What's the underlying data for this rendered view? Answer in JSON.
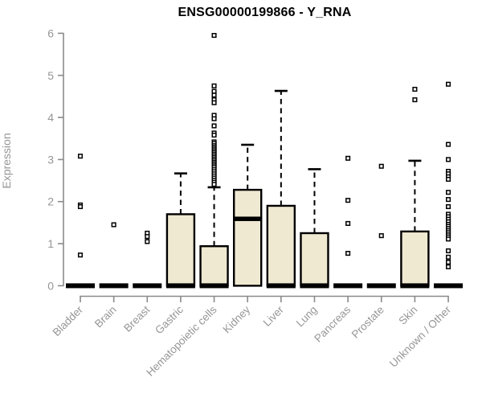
{
  "chart_data": {
    "type": "boxplot",
    "title": "ENSG00000199866 - Y_RNA",
    "ylabel": "Expression",
    "ylim": [
      0,
      6
    ],
    "yticks": [
      0,
      1,
      2,
      3,
      4,
      5,
      6
    ],
    "grid": false,
    "colors": {
      "box_fill": "#f0e9d2",
      "box_stroke": "#000000",
      "median": "#000000",
      "axis": "#8a8a8a",
      "tick_label": "#969696",
      "title": "#000000"
    },
    "categories": [
      {
        "label": "Bladder",
        "q1": 0,
        "median": 0,
        "q3": 0,
        "whisker_low": 0,
        "whisker_high": 0,
        "outliers": [
          3.08,
          1.92,
          1.88,
          0.73
        ]
      },
      {
        "label": "Brain",
        "q1": 0,
        "median": 0,
        "q3": 0,
        "whisker_low": 0,
        "whisker_high": 0,
        "outliers": [
          1.45
        ]
      },
      {
        "label": "Breast",
        "q1": 0,
        "median": 0,
        "q3": 0,
        "whisker_low": 0,
        "whisker_high": 0,
        "outliers": [
          1.25,
          1.17,
          1.05
        ]
      },
      {
        "label": "Gastric",
        "q1": 0,
        "median": 0,
        "q3": 1.7,
        "whisker_low": 0,
        "whisker_high": 2.67,
        "outliers": []
      },
      {
        "label": "Hematopoietic cells",
        "q1": 0,
        "median": 0,
        "q3": 0.94,
        "whisker_low": 0,
        "whisker_high": 2.34,
        "outliers": [
          5.95,
          4.75,
          4.62,
          4.53,
          4.42,
          4.35,
          4.05,
          3.97,
          3.8,
          3.63,
          3.58,
          3.42,
          3.38,
          3.33,
          3.29,
          3.25,
          3.21,
          3.17,
          3.13,
          3.09,
          3.05,
          3.01,
          2.97,
          2.93,
          2.89,
          2.85,
          2.81,
          2.76,
          2.71,
          2.66,
          2.61,
          2.56,
          2.51,
          2.46,
          2.41
        ]
      },
      {
        "label": "Kidney",
        "q1": 0,
        "median": 1.59,
        "q3": 2.28,
        "whisker_low": 0,
        "whisker_high": 3.35,
        "outliers": []
      },
      {
        "label": "Liver",
        "q1": 0,
        "median": 0,
        "q3": 1.9,
        "whisker_low": 0,
        "whisker_high": 4.63,
        "outliers": []
      },
      {
        "label": "Lung",
        "q1": 0,
        "median": 0,
        "q3": 1.25,
        "whisker_low": 0,
        "whisker_high": 2.77,
        "outliers": []
      },
      {
        "label": "Pancreas",
        "q1": 0,
        "median": 0,
        "q3": 0,
        "whisker_low": 0,
        "whisker_high": 0,
        "outliers": [
          3.03,
          2.03,
          1.48,
          0.77
        ]
      },
      {
        "label": "Prostate",
        "q1": 0,
        "median": 0,
        "q3": 0,
        "whisker_low": 0,
        "whisker_high": 0,
        "outliers": [
          2.84,
          1.19
        ]
      },
      {
        "label": "Skin",
        "q1": 0,
        "median": 0,
        "q3": 1.29,
        "whisker_low": 0,
        "whisker_high": 2.97,
        "outliers": [
          4.67,
          4.42
        ]
      },
      {
        "label": "Unknown / Other",
        "q1": 0,
        "median": 0,
        "q3": 0,
        "whisker_low": 0,
        "whisker_high": 0,
        "outliers": [
          4.79,
          3.36,
          3.0,
          2.72,
          2.66,
          2.59,
          2.53,
          2.22,
          2.05,
          1.88,
          1.7,
          1.64,
          1.58,
          1.52,
          1.46,
          1.41,
          1.36,
          1.31,
          1.26,
          1.21,
          1.16,
          1.11,
          0.83,
          0.68,
          0.56,
          0.45
        ]
      }
    ]
  }
}
